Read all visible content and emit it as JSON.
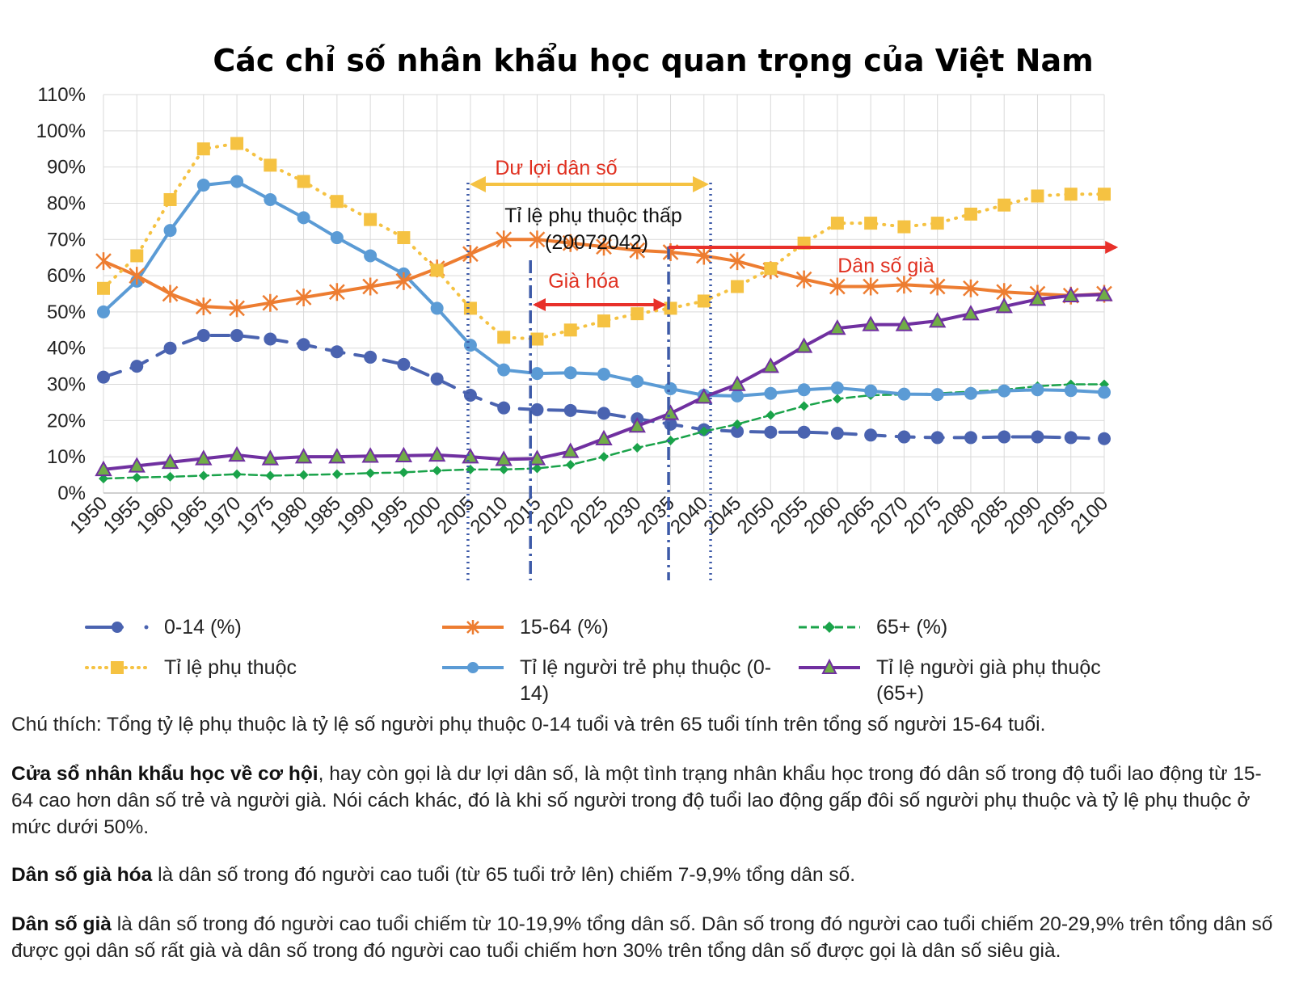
{
  "chart_data": {
    "type": "line",
    "title": "Các chỉ số nhân khẩu học quan trọng của Việt Nam",
    "xlabel": "",
    "ylabel": "",
    "ylim": [
      0,
      110
    ],
    "y_ticks": [
      "0%",
      "10%",
      "20%",
      "30%",
      "40%",
      "50%",
      "60%",
      "70%",
      "80%",
      "90%",
      "100%",
      "110%"
    ],
    "categories": [
      "1950",
      "1955",
      "1960",
      "1965",
      "1970",
      "1975",
      "1980",
      "1985",
      "1990",
      "1995",
      "2000",
      "2005",
      "2010",
      "2015",
      "2020",
      "2025",
      "2030",
      "2035",
      "2040",
      "2045",
      "2050",
      "2055",
      "2060",
      "2065",
      "2070",
      "2075",
      "2080",
      "2085",
      "2090",
      "2095",
      "2100"
    ],
    "series": [
      {
        "name": "0-14 (%)",
        "color": "#4a63b0",
        "values": [
          32,
          35,
          40,
          43.5,
          43.5,
          42.5,
          41,
          39,
          37.5,
          35.5,
          31.5,
          27,
          23.5,
          23,
          22.8,
          22,
          20.5,
          19,
          17.5,
          17,
          16.8,
          16.8,
          16.5,
          16,
          15.5,
          15.3,
          15.3,
          15.5,
          15.5,
          15.3,
          15
        ]
      },
      {
        "name": "15-64 (%)",
        "color": "#ed7d31",
        "values": [
          64,
          60,
          55,
          51.5,
          51,
          52.5,
          54,
          55.5,
          57,
          58.5,
          62,
          66,
          70,
          70,
          69,
          68,
          67,
          66.5,
          65.5,
          64,
          61.5,
          59,
          57,
          57,
          57.5,
          57,
          56.5,
          55.5,
          55,
          54.5,
          55
        ]
      },
      {
        "name": "65+ (%)",
        "color": "#1aa34a",
        "values": [
          4,
          4.3,
          4.5,
          4.8,
          5.2,
          4.8,
          5,
          5.2,
          5.5,
          5.7,
          6.2,
          6.5,
          6.5,
          6.8,
          7.8,
          10,
          12.5,
          14.5,
          17,
          19,
          21.5,
          24,
          26,
          27,
          27.2,
          27.5,
          28,
          28.5,
          29.5,
          30,
          30
        ]
      },
      {
        "name": "Tỉ lệ phụ thuộc",
        "color": "#f5c242",
        "values": [
          56.5,
          65.5,
          81,
          95,
          96.5,
          90.5,
          86,
          80.5,
          75.5,
          70.5,
          61.5,
          51,
          43,
          42.5,
          45,
          47.5,
          49.5,
          51,
          53,
          57,
          62,
          69,
          74.5,
          74.5,
          73.5,
          74.5,
          77,
          79.5,
          82,
          82.5,
          82.5
        ]
      },
      {
        "name": "Tỉ lệ người trẻ phụ thuộc (0-14)",
        "color": "#5b9bd5",
        "values": [
          50,
          58.5,
          72.5,
          85,
          86,
          81,
          76,
          70.5,
          65.5,
          60.5,
          51,
          40.8,
          34,
          33,
          33.2,
          32.8,
          30.8,
          28.8,
          27,
          26.8,
          27.5,
          28.5,
          29,
          28.2,
          27.3,
          27.2,
          27.5,
          28.2,
          28.5,
          28.3,
          27.8
        ]
      },
      {
        "name": "Tỉ lệ người già phụ thuộc (65+)",
        "color": "#7030a0",
        "values": [
          6.5,
          7.5,
          8.5,
          9.5,
          10.5,
          9.5,
          10,
          10,
          10.2,
          10.3,
          10.5,
          10,
          9.3,
          9.5,
          11.5,
          15,
          18.5,
          22,
          26.5,
          30,
          35,
          40.5,
          45.5,
          46.5,
          46.5,
          47.5,
          49.5,
          51.5,
          53.5,
          54.5,
          54.8
        ]
      }
    ],
    "annotations": {
      "du_loi": "Dư lợi dân số",
      "phu_thuoc_thap_1": "Tỉ lệ phụ thuộc thấp",
      "phu_thuoc_thap_2": "(20072042)",
      "gia_hoa": "Già hóa",
      "dan_so_gia": "Dân số già"
    },
    "legend_position": "bottom"
  },
  "legend": {
    "items": [
      {
        "label": "0-14 (%)"
      },
      {
        "label": "15-64 (%)"
      },
      {
        "label": "65+ (%)"
      },
      {
        "label": "Tỉ lệ phụ thuộc"
      },
      {
        "label": "Tỉ lệ người trẻ  phụ thuộc (0-14)"
      },
      {
        "label": "Tỉ lệ người già phụ thuộc (65+)"
      }
    ]
  },
  "notes": {
    "note1": "Chú thích: Tổng tỷ lệ phụ thuộc là tỷ lệ số người phụ thuộc 0-14 tuổi và trên 65 tuổi tính trên tổng số người 15-64 tuổi.",
    "note2_bold": "Cửa sổ nhân khẩu học về cơ hội",
    "note2_text": ", hay còn gọi là dư lợi dân số, là một tình trạng nhân khẩu học trong đó dân số trong độ tuổi lao động từ 15-64 cao hơn dân số trẻ và người già. Nói cách khác, đó là khi số người trong độ tuổi lao động gấp đôi số người phụ thuộc và tỷ lệ phụ thuộc ở mức dưới 50%.",
    "note3_bold": "Dân số già hóa",
    "note3_text": " là dân số trong đó người cao tuổi (từ 65 tuổi trở lên) chiếm 7-9,9% tổng dân số. ",
    "note4_bold": "Dân số già",
    "note4_text": " là dân số trong đó người cao tuổi chiếm từ 10-19,9% tổng dân số. Dân số trong đó người cao tuổi chiếm 20-29,9% trên tổng dân số được gọi dân số rất già và dân số trong đó người cao tuổi chiếm hơn 30% trên tổng dân số được gọi là dân số siêu già."
  }
}
